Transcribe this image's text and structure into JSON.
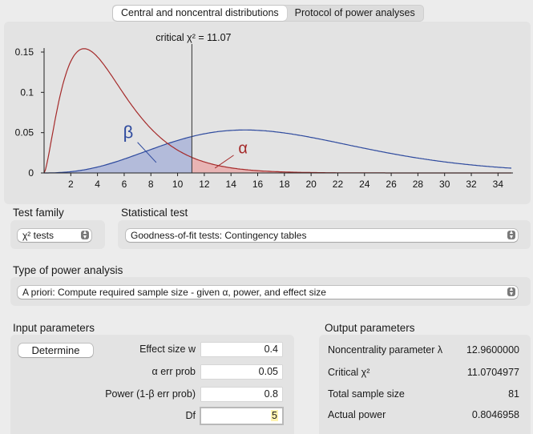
{
  "tabs": [
    {
      "label": "Central and noncentral distributions",
      "selected": true
    },
    {
      "label": "Protocol of power analyses",
      "selected": false
    }
  ],
  "chart_data": {
    "type": "area",
    "df": 5,
    "noncentrality": 12.96,
    "critical_value": 11.07,
    "critical_label": "critical χ² = 11.07",
    "alpha_label": "α",
    "beta_label": "β",
    "xlim": [
      0,
      35
    ],
    "ylim": [
      0,
      0.15
    ],
    "x_ticks": [
      2,
      4,
      6,
      8,
      10,
      12,
      14,
      16,
      18,
      20,
      22,
      24,
      26,
      28,
      30,
      32,
      34
    ],
    "y_ticks": [
      0,
      0.05,
      0.1,
      0.15
    ],
    "y_tick_labels": [
      "0",
      "0.05",
      "0.1",
      "0.15"
    ],
    "series": [
      {
        "role": "central",
        "color": "#a52a2a"
      },
      {
        "role": "noncentral",
        "color": "#2e4a9e"
      }
    ],
    "alpha_fill": "#e8b4b4",
    "beta_fill": "#aab4d8"
  },
  "test_family": {
    "title": "Test family",
    "value": "χ² tests"
  },
  "statistical_test": {
    "title": "Statistical test",
    "value": "Goodness-of-fit tests: Contingency tables"
  },
  "power_analysis": {
    "title": "Type of power analysis",
    "value": "A priori: Compute required sample size - given α, power, and effect size"
  },
  "input": {
    "title": "Input parameters",
    "determine_label": "Determine",
    "params": [
      {
        "label": "Effect size w",
        "value": "0.4"
      },
      {
        "label": "α err prob",
        "value": "0.05"
      },
      {
        "label": "Power (1-β err prob)",
        "value": "0.8"
      },
      {
        "label": "Df",
        "value": "5"
      }
    ]
  },
  "output": {
    "title": "Output parameters",
    "params": [
      {
        "label": "Noncentrality parameter λ",
        "value": "12.9600000"
      },
      {
        "label": "Critical χ²",
        "value": "11.0704977"
      },
      {
        "label": "Total sample size",
        "value": "81"
      },
      {
        "label": "Actual power",
        "value": "0.8046958"
      }
    ]
  }
}
